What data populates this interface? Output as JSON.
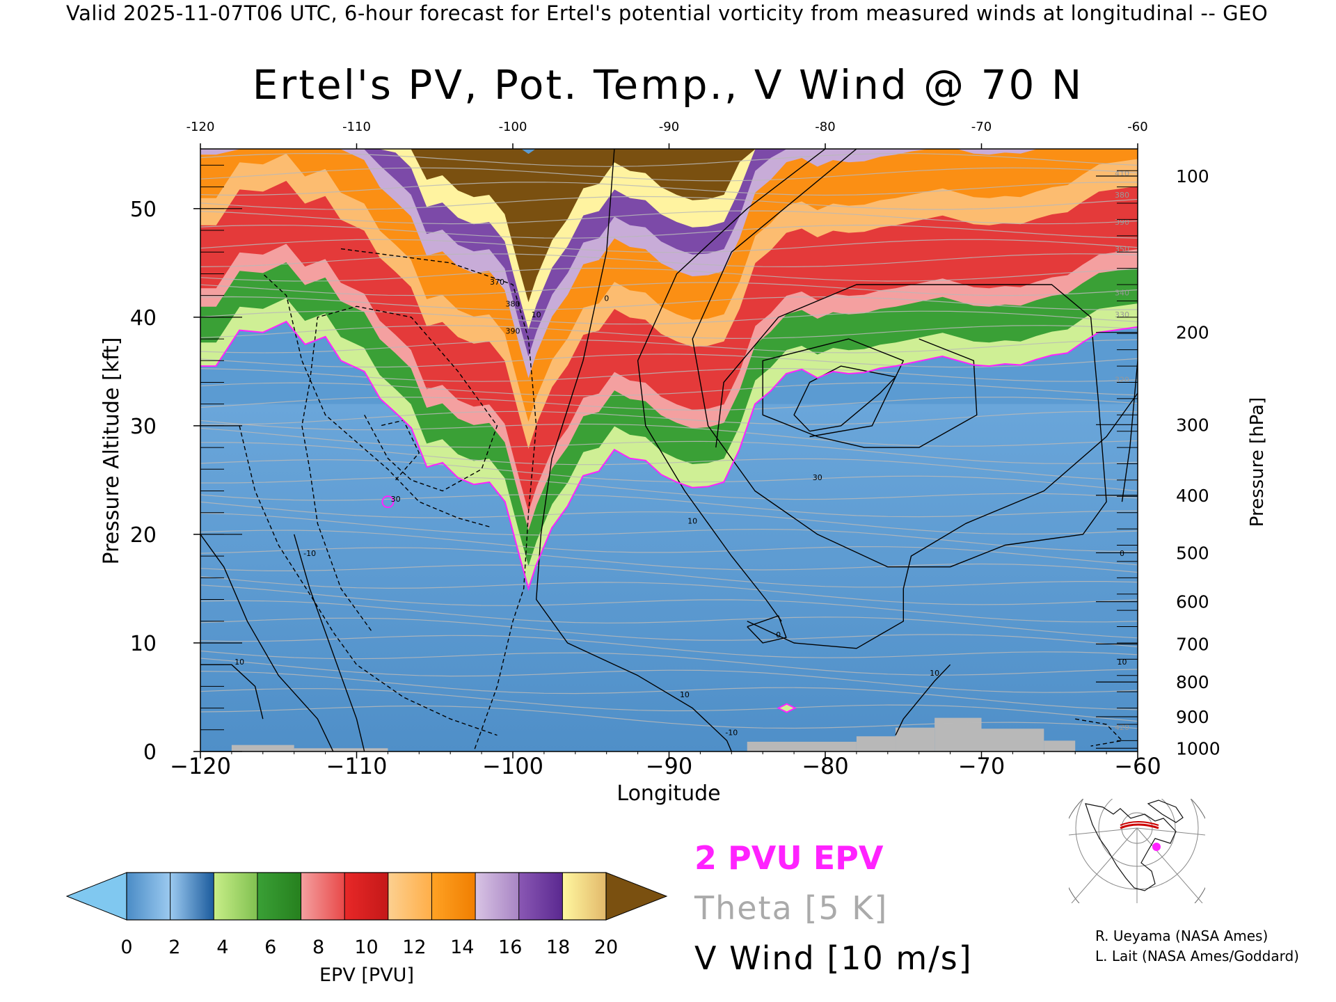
{
  "header": "Valid 2025-11-07T06 UTC, 6-hour forecast for Ertel's potential vorticity from measured winds at longitudinal -- GEO",
  "chart_data": {
    "type": "heatmap",
    "title": "Ertel's PV, Pot. Temp., V Wind @ 70 N",
    "xlabel": "Longitude",
    "ylabel_left": "Pressure Altitude [kft]",
    "ylabel_right": "Pressure [hPa]",
    "xlim": [
      -120,
      -60
    ],
    "ylim": [
      0,
      55.5
    ],
    "grid": false,
    "x_ticks": [
      -120,
      -110,
      -100,
      -90,
      -80,
      -70,
      -60
    ],
    "x_tick_labels": [
      "−120",
      "−110",
      "−100",
      "−90",
      "−80",
      "−70",
      "−60"
    ],
    "top_tick_labels": [
      "-120",
      "-110",
      "-100",
      "-90",
      "-80",
      "-70",
      "-60"
    ],
    "y_ticks": [
      0,
      10,
      20,
      30,
      40,
      50
    ],
    "y_tick_labels": [
      "0",
      "10",
      "20",
      "30",
      "40",
      "50"
    ],
    "pressure_ticks": [
      {
        "kft": 53.0,
        "hPa": "100"
      },
      {
        "kft": 38.6,
        "hPa": "200"
      },
      {
        "kft": 30.1,
        "hPa": "300"
      },
      {
        "kft": 23.6,
        "hPa": "400"
      },
      {
        "kft": 18.3,
        "hPa": "500"
      },
      {
        "kft": 13.8,
        "hPa": "600"
      },
      {
        "kft": 9.9,
        "hPa": "700"
      },
      {
        "kft": 6.4,
        "hPa": "800"
      },
      {
        "kft": 3.2,
        "hPa": "900"
      },
      {
        "kft": 0.3,
        "hPa": "1000"
      }
    ],
    "series": [
      {
        "name": "2 PVU EPV",
        "color": "#ff22ff",
        "points": [
          [
            -120,
            35.5
          ],
          [
            -119,
            35.5
          ],
          [
            -117.5,
            38.8
          ],
          [
            -116,
            38.6
          ],
          [
            -114.5,
            39.6
          ],
          [
            -113.3,
            37.5
          ],
          [
            -112,
            38.2
          ],
          [
            -111,
            36
          ],
          [
            -109.5,
            35
          ],
          [
            -108.5,
            32.5
          ],
          [
            -107.5,
            31.2
          ],
          [
            -106.5,
            29.8
          ],
          [
            -105.5,
            26.2
          ],
          [
            -104.5,
            26.6
          ],
          [
            -103.5,
            25.2
          ],
          [
            -102.5,
            24.6
          ],
          [
            -101.5,
            24.8
          ],
          [
            -100.5,
            23
          ],
          [
            -99.5,
            17.6
          ],
          [
            -99.0,
            15.0
          ],
          [
            -98.5,
            17.2
          ],
          [
            -97.5,
            20.6
          ],
          [
            -96.5,
            22.6
          ],
          [
            -95.5,
            25.4
          ],
          [
            -94.5,
            25.8
          ],
          [
            -93.5,
            27.8
          ],
          [
            -92.5,
            27
          ],
          [
            -91.5,
            26.8
          ],
          [
            -90.5,
            25.5
          ],
          [
            -89.5,
            24.8
          ],
          [
            -88.5,
            24.3
          ],
          [
            -87.5,
            24.4
          ],
          [
            -86.5,
            24.8
          ],
          [
            -85.5,
            27.8
          ],
          [
            -84.5,
            32
          ],
          [
            -83.5,
            33.2
          ],
          [
            -82.5,
            34.8
          ],
          [
            -81.5,
            35.2
          ],
          [
            -80.5,
            34.4
          ],
          [
            -79.5,
            35.0
          ],
          [
            -78.5,
            34.8
          ],
          [
            -77.5,
            34.9
          ],
          [
            -76.5,
            35.3
          ],
          [
            -75.5,
            35.5
          ],
          [
            -74.5,
            35.8
          ],
          [
            -73.5,
            36.1
          ],
          [
            -72.5,
            36.4
          ],
          [
            -71.5,
            36.0
          ],
          [
            -70.5,
            35.6
          ],
          [
            -69.5,
            35.5
          ],
          [
            -68.5,
            35.7
          ],
          [
            -67.5,
            35.6
          ],
          [
            -66.5,
            36.1
          ],
          [
            -65.5,
            36.5
          ],
          [
            -64.5,
            36.7
          ],
          [
            -63.5,
            37.7
          ],
          [
            -62.5,
            38.6
          ],
          [
            -61.5,
            38.8
          ],
          [
            -60,
            39.1
          ]
        ]
      },
      {
        "name": "Theta",
        "interval_K": 5,
        "levels": [
          280,
          290,
          300,
          310,
          320,
          330,
          340,
          350,
          360,
          370,
          380,
          390,
          400,
          410,
          420
        ]
      },
      {
        "name": "V Wind",
        "interval_m_s": 10,
        "levels": [
          -30,
          -10,
          0,
          10,
          30
        ]
      }
    ],
    "contour_labels": [
      "370",
      "380",
      "390",
      "10",
      "0",
      "30",
      "10",
      "30",
      "-10",
      "10",
      "10",
      "0",
      "-10",
      "10",
      "0",
      "10",
      "420",
      "410",
      "380",
      "390",
      "350",
      "340",
      "330",
      "320"
    ],
    "colorbar": {
      "label": "EPV [PVU]",
      "ticks": [
        "0",
        "2",
        "4",
        "6",
        "8",
        "10",
        "12",
        "14",
        "16",
        "18",
        "20"
      ],
      "under_color": "#80c8f0",
      "over_color": "#7a5010",
      "colors": [
        [
          "#4a8cc6",
          "#9ccaf0"
        ],
        [
          "#9ccaf0",
          "#1a5a9c"
        ],
        [
          "#c8ee88",
          "#80c050"
        ],
        [
          "#3aa036",
          "#26801e"
        ],
        [
          "#f4a0a0",
          "#e84848"
        ],
        [
          "#e82828",
          "#c41818"
        ],
        [
          "#fcd090",
          "#ffae48"
        ],
        [
          "#ffa224",
          "#f07e00"
        ],
        [
          "#d8c4e4",
          "#a884c4"
        ],
        [
          "#8a58b4",
          "#5a2890"
        ],
        [
          "#fff7a0",
          "#e2b86a"
        ]
      ]
    },
    "legend": [
      {
        "label": "2 PVU EPV",
        "color": "#ff22ff"
      },
      {
        "label": "Theta [5 K]",
        "color": "#aaaaaa"
      },
      {
        "label": "V Wind [10 m/s]",
        "color": "#000000"
      }
    ]
  },
  "credits": [
    "R. Ueyama (NASA Ames)",
    "L. Lait (NASA Ames/Goddard)"
  ]
}
